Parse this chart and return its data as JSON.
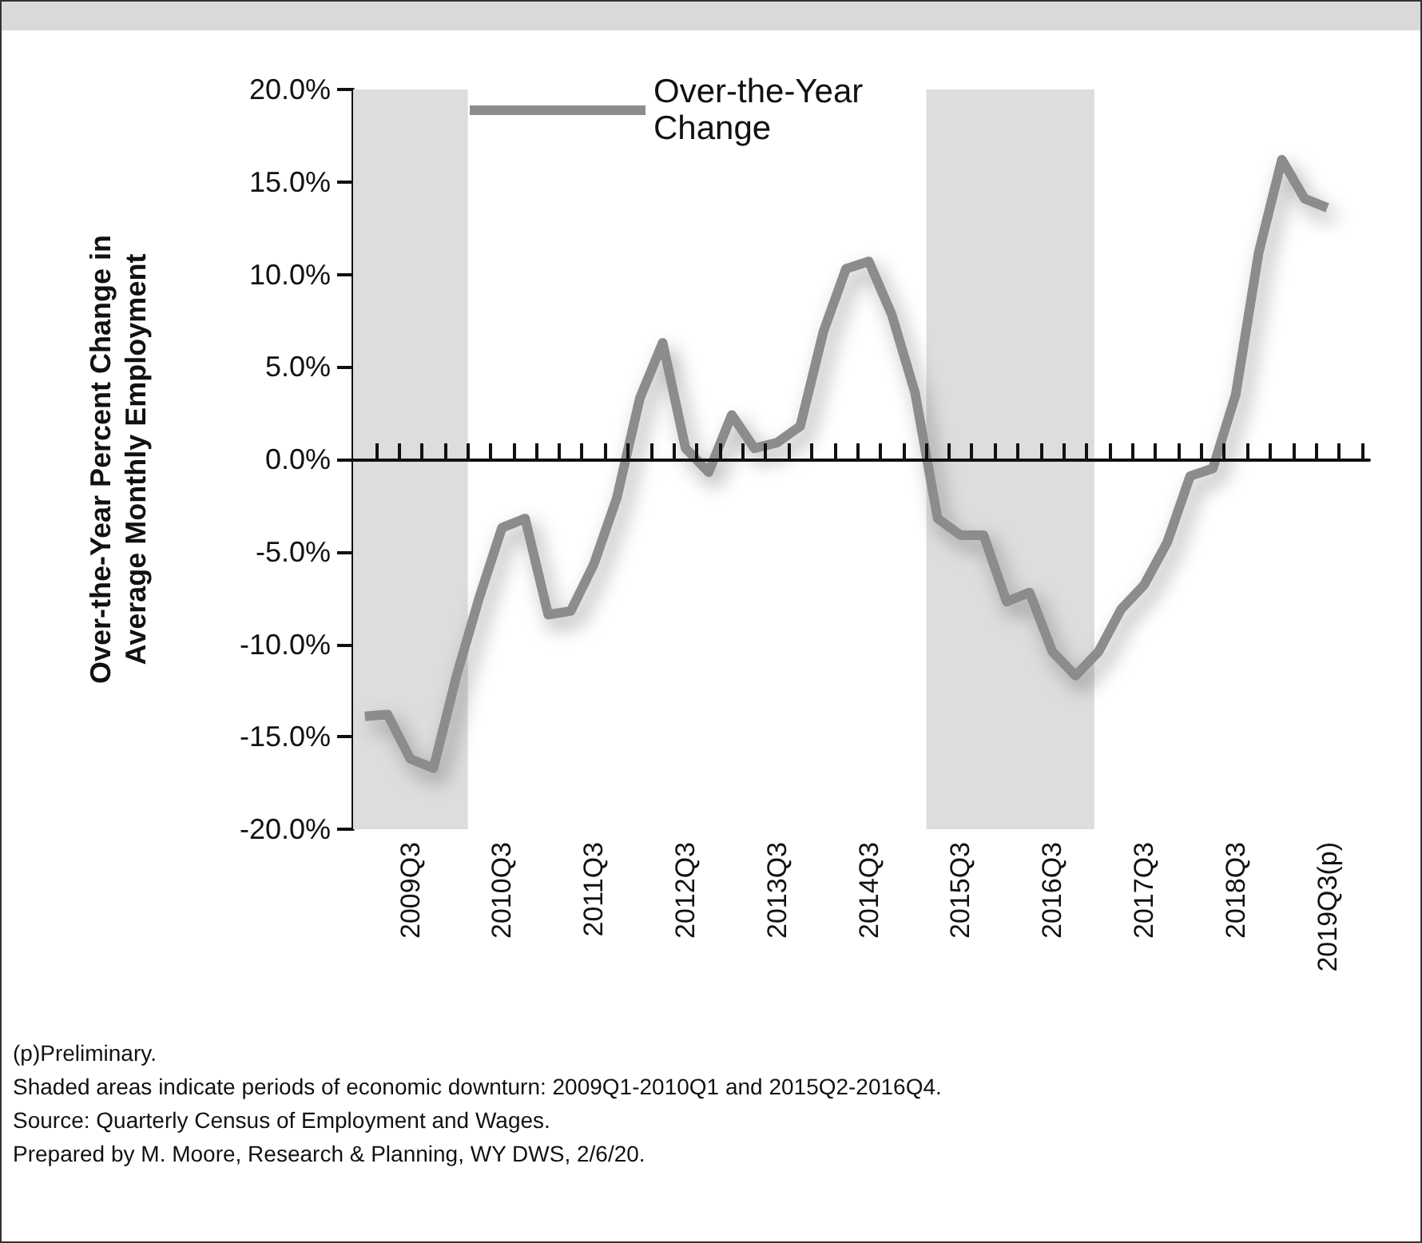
{
  "chart_data": {
    "type": "line",
    "ylabel": "Over-the-Year Percent Change in\nAverage Monthly Employment",
    "x": [
      "2009-01",
      "2009-04",
      "2009-07",
      "2009-10",
      "2010-01",
      "2010-04",
      "2010-07",
      "2010-10",
      "2011-01",
      "2011-04",
      "2011-07",
      "2011-10",
      "2012-01",
      "2012-04",
      "2012-07",
      "2012-10",
      "2013-01",
      "2013-04",
      "2013-07",
      "2013-10",
      "2014-01",
      "2014-04",
      "2014-07",
      "2014-10",
      "2015-01",
      "2015-04",
      "2015-07",
      "2015-10",
      "2016-01",
      "2016-04",
      "2016-07",
      "2016-10",
      "2017-01",
      "2017-04",
      "2017-07",
      "2017-10",
      "2018-01",
      "2018-04",
      "2018-07",
      "2018-10",
      "2019-01",
      "2019-04",
      "2019-07"
    ],
    "series": [
      {
        "name": "Over-the-Year Change",
        "color": "#8c8c8c",
        "values": [
          -13.9,
          -13.8,
          -16.2,
          -16.7,
          -11.7,
          -7.5,
          -3.7,
          -3.2,
          -8.4,
          -8.2,
          -5.7,
          -2.1,
          3.3,
          6.3,
          0.6,
          -0.7,
          2.4,
          0.6,
          0.9,
          1.8,
          6.9,
          10.3,
          10.7,
          7.8,
          3.6,
          -3.2,
          -4.1,
          -4.1,
          -7.7,
          -7.2,
          -10.4,
          -11.7,
          -10.4,
          -8.1,
          -6.8,
          -4.5,
          -0.9,
          -0.5,
          3.5,
          11.2,
          16.2,
          14.1,
          13.6
        ]
      }
    ],
    "xlim": [
      "2008-11-15",
      "2019-12-15"
    ],
    "xticks": [
      {
        "value": "2009-02-15",
        "label": null
      },
      {
        "value": "2009-05-15",
        "label": null
      },
      {
        "value": "2009-07",
        "label": "2009Q3"
      },
      {
        "value": "2009-08-15",
        "label": null
      },
      {
        "value": "2009-11-15",
        "label": null
      },
      {
        "value": "2010-02-15",
        "label": null
      },
      {
        "value": "2010-05-15",
        "label": null
      },
      {
        "value": "2010-07",
        "label": "2010Q3"
      },
      {
        "value": "2010-08-15",
        "label": null
      },
      {
        "value": "2010-11-15",
        "label": null
      },
      {
        "value": "2011-02-15",
        "label": null
      },
      {
        "value": "2011-05-15",
        "label": null
      },
      {
        "value": "2011-07",
        "label": "2011Q3"
      },
      {
        "value": "2011-08-15",
        "label": null
      },
      {
        "value": "2011-11-15",
        "label": null
      },
      {
        "value": "2012-02-15",
        "label": null
      },
      {
        "value": "2012-05-15",
        "label": null
      },
      {
        "value": "2012-07",
        "label": "2012Q3"
      },
      {
        "value": "2012-08-15",
        "label": null
      },
      {
        "value": "2012-11-15",
        "label": null
      },
      {
        "value": "2013-02-15",
        "label": null
      },
      {
        "value": "2013-05-15",
        "label": null
      },
      {
        "value": "2013-07",
        "label": "2013Q3"
      },
      {
        "value": "2013-08-15",
        "label": null
      },
      {
        "value": "2013-11-15",
        "label": null
      },
      {
        "value": "2014-02-15",
        "label": null
      },
      {
        "value": "2014-05-15",
        "label": null
      },
      {
        "value": "2014-07",
        "label": "2014Q3"
      },
      {
        "value": "2014-08-15",
        "label": null
      },
      {
        "value": "2014-11-15",
        "label": null
      },
      {
        "value": "2015-02-15",
        "label": null
      },
      {
        "value": "2015-05-15",
        "label": null
      },
      {
        "value": "2015-07",
        "label": "2015Q3"
      },
      {
        "value": "2015-08-15",
        "label": null
      },
      {
        "value": "2015-11-15",
        "label": null
      },
      {
        "value": "2016-02-15",
        "label": null
      },
      {
        "value": "2016-05-15",
        "label": null
      },
      {
        "value": "2016-07",
        "label": "2016Q3"
      },
      {
        "value": "2016-08-15",
        "label": null
      },
      {
        "value": "2016-11-15",
        "label": null
      },
      {
        "value": "2017-02-15",
        "label": null
      },
      {
        "value": "2017-05-15",
        "label": null
      },
      {
        "value": "2017-07",
        "label": "2017Q3"
      },
      {
        "value": "2017-08-15",
        "label": null
      },
      {
        "value": "2017-11-15",
        "label": null
      },
      {
        "value": "2018-02-15",
        "label": null
      },
      {
        "value": "2018-05-15",
        "label": null
      },
      {
        "value": "2018-07",
        "label": "2018Q3"
      },
      {
        "value": "2018-08-15",
        "label": null
      },
      {
        "value": "2018-11-15",
        "label": null
      },
      {
        "value": "2019-02-15",
        "label": null
      },
      {
        "value": "2019-05-15",
        "label": null
      },
      {
        "value": "2019-07",
        "label": "2019Q3(p)"
      },
      {
        "value": "2019-08-15",
        "label": null
      },
      {
        "value": "2019-11-15",
        "label": null
      }
    ],
    "ylim": [
      -20,
      20
    ],
    "yticks": [
      {
        "value": -20,
        "label": "-20.0%"
      },
      {
        "value": -15,
        "label": "-15.0%"
      },
      {
        "value": -10,
        "label": "-10.0%"
      },
      {
        "value": -5,
        "label": "-5.0%"
      },
      {
        "value": 0,
        "label": "0.0%"
      },
      {
        "value": 5,
        "label": "5.0%"
      },
      {
        "value": 10,
        "label": "10.0%"
      },
      {
        "value": 15,
        "label": "15.0%"
      },
      {
        "value": 20,
        "label": "20.0%"
      }
    ],
    "bands": [
      {
        "axis": "x",
        "from": "2008-11-15",
        "to": "2010-02-15",
        "color": "#dcdddf"
      },
      {
        "axis": "x",
        "from": "2015-02-15",
        "to": "2016-12-15",
        "color": "#dcdddf"
      }
    ],
    "legend": "top",
    "marker": "none",
    "line_style": "solid",
    "annotations": [
      "(p)Preliminary.",
      "Shaded areas indicate periods of economic downturn: 2009Q1-2010Q1 and 2015Q2-2016Q4.",
      "Source: Quarterly Census of Employment and Wages.",
      "Prepared by M. Moore, Research & Planning, WY DWS, 2/6/20."
    ]
  }
}
